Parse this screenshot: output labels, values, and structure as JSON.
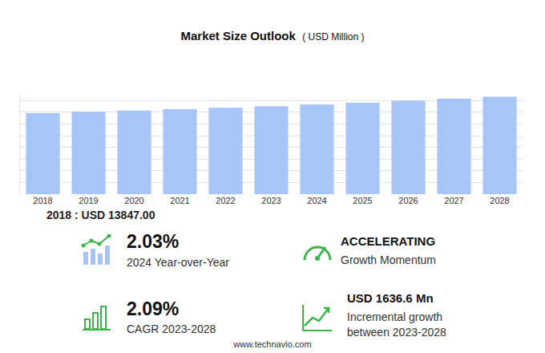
{
  "chart_data": {
    "type": "bar",
    "title": "Market Size Outlook",
    "subtitle": "( USD Million )",
    "categories": [
      "2018",
      "2019",
      "2020",
      "2021",
      "2022",
      "2023",
      "2024",
      "2025",
      "2026",
      "2027",
      "2028"
    ],
    "values": [
      13847,
      14074,
      14305,
      14540,
      14779,
      15015,
      15320,
      15640,
      15970,
      16310,
      16652
    ],
    "color": "#a8c5f7",
    "ylim": [
      0,
      17000
    ],
    "yticks": [
      0,
      2000,
      4000,
      6000,
      8000,
      10000,
      12000,
      14000,
      16000
    ],
    "grid": true,
    "tick_labels": "x"
  },
  "note": "2018 : USD  13847.00",
  "kpis": [
    {
      "value": "2.03%",
      "lines": [
        "2024 Year-over-Year"
      ]
    },
    {
      "value": "ACCELERATING",
      "lines": [
        "Growth Momentum"
      ]
    },
    {
      "value": "2.09%",
      "lines": [
        "CAGR 2023-2028"
      ]
    },
    {
      "value": "USD 1636.6 Mn",
      "lines": [
        "Incremental growth",
        "between 2023-2028"
      ]
    }
  ],
  "footer": "www.technavio.com"
}
